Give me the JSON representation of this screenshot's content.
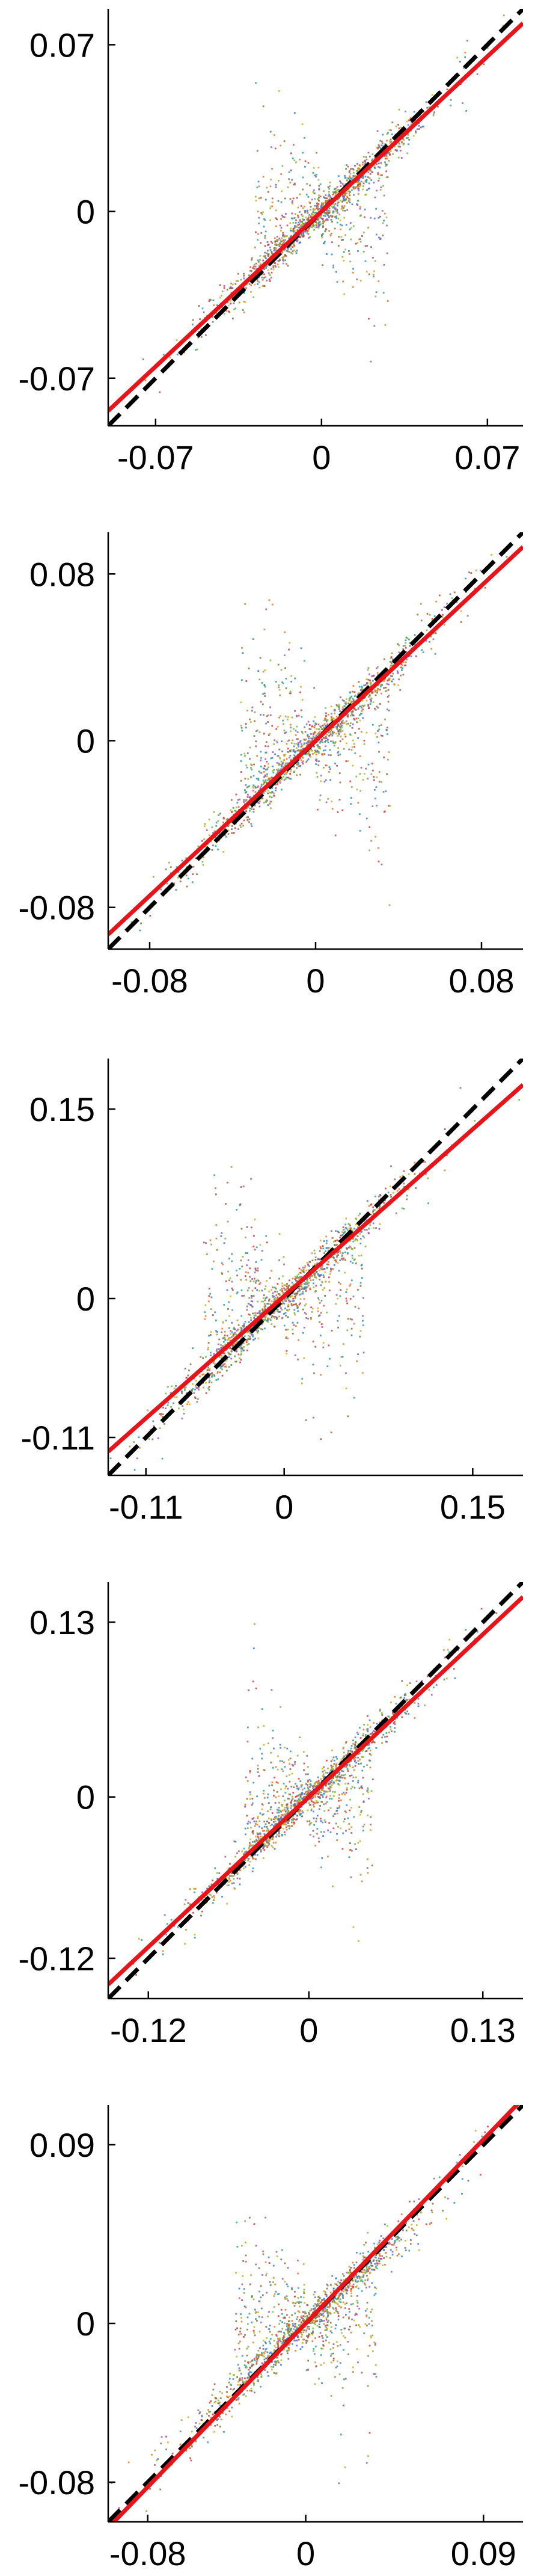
{
  "chart_data": [
    {
      "type": "scatter",
      "xlim": [
        -0.09,
        0.085
      ],
      "ylim": [
        -0.09,
        0.085
      ],
      "xticks": [
        -0.07,
        0,
        0.07
      ],
      "xtick_labels": [
        "-0.07",
        "0",
        "0.07"
      ],
      "yticks": [
        -0.07,
        0,
        0.07
      ],
      "ytick_labels": [
        "-0.07",
        "0",
        "0.07"
      ],
      "fit_line": {
        "color": "#e8141a",
        "slope": 0.93,
        "intercept": 0.0
      },
      "identity_line": {
        "color": "#000000",
        "dash": true
      },
      "point_cloud": {
        "spread": 0.045,
        "wing": 0.035,
        "n": 1500
      },
      "grid": false
    },
    {
      "type": "scatter",
      "xlim": [
        -0.1,
        0.1
      ],
      "ylim": [
        -0.1,
        0.1
      ],
      "xticks": [
        -0.08,
        0,
        0.08
      ],
      "xtick_labels": [
        "-0.08",
        "0",
        "0.08"
      ],
      "yticks": [
        -0.08,
        0,
        0.08
      ],
      "ytick_labels": [
        "-0.08",
        "0",
        "0.08"
      ],
      "fit_line": {
        "color": "#e8141a",
        "slope": 0.93,
        "intercept": 0.0
      },
      "identity_line": {
        "color": "#000000",
        "dash": true
      },
      "point_cloud": {
        "spread": 0.055,
        "wing": 0.045,
        "n": 1500
      },
      "grid": false
    },
    {
      "type": "scatter",
      "xlim": [
        -0.14,
        0.19
      ],
      "ylim": [
        -0.14,
        0.19
      ],
      "xticks": [
        -0.11,
        0,
        0.15
      ],
      "xtick_labels": [
        "-0.11",
        "0",
        "0.15"
      ],
      "yticks": [
        -0.11,
        0,
        0.15
      ],
      "ytick_labels": [
        "-0.11",
        "0",
        "0.15"
      ],
      "fit_line": {
        "color": "#e8141a",
        "slope": 0.88,
        "intercept": 0.002
      },
      "identity_line": {
        "color": "#000000",
        "dash": true
      },
      "point_cloud": {
        "spread": 0.09,
        "wing": 0.08,
        "n": 1500
      },
      "grid": false
    },
    {
      "type": "scatter",
      "xlim": [
        -0.15,
        0.16
      ],
      "ylim": [
        -0.15,
        0.16
      ],
      "xticks": [
        -0.12,
        0,
        0.13
      ],
      "xtick_labels": [
        "-0.12",
        "0",
        "0.13"
      ],
      "yticks": [
        -0.12,
        0,
        0.13
      ],
      "ytick_labels": [
        "-0.12",
        "0",
        "0.13"
      ],
      "fit_line": {
        "color": "#e8141a",
        "slope": 0.93,
        "intercept": 0.0
      },
      "identity_line": {
        "color": "#000000",
        "dash": true
      },
      "point_cloud": {
        "spread": 0.08,
        "wing": 0.06,
        "n": 1500
      },
      "grid": false
    },
    {
      "type": "scatter",
      "xlim": [
        -0.1,
        0.11
      ],
      "ylim": [
        -0.1,
        0.11
      ],
      "xticks": [
        -0.08,
        0,
        0.09
      ],
      "xtick_labels": [
        "-0.08",
        "0",
        "0.09"
      ],
      "yticks": [
        -0.08,
        0,
        0.09
      ],
      "ytick_labels": [
        "-0.08",
        "0",
        "0.09"
      ],
      "fit_line": {
        "color": "#e8141a",
        "slope": 1.03,
        "intercept": 0.0
      },
      "identity_line": {
        "color": "#000000",
        "dash": true
      },
      "point_cloud": {
        "spread": 0.06,
        "wing": 0.045,
        "n": 1500
      },
      "grid": false
    }
  ],
  "colors": {
    "axis": "#000000",
    "fit": "#e8141a",
    "identity": "#000000",
    "points": [
      "#3a7fd0",
      "#e07b2a",
      "#7bb642",
      "#9b59b6",
      "#d23c3c",
      "#c7b21f",
      "#2aa39a",
      "#8a6d3b"
    ]
  }
}
